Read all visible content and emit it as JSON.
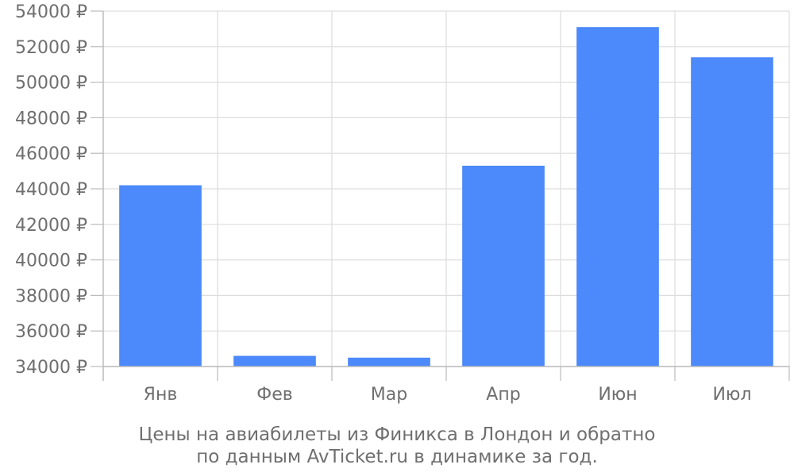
{
  "caption": {
    "line1": "Цены на авиабилеты из Финикса в Лондон и обратно",
    "line2": "по данным AvTicket.ru в динамике за год."
  },
  "colors": {
    "bar": "#4c89fa",
    "grid": "#dddddd",
    "axis": "#bbbbbb",
    "text": "#6f6f6f"
  },
  "chart_data": {
    "type": "bar",
    "categories": [
      "Янв",
      "Фев",
      "Мар",
      "Апр",
      "Июн",
      "Июл"
    ],
    "values": [
      44200,
      34600,
      34500,
      45300,
      53100,
      51400
    ],
    "ylim": [
      34000,
      54000
    ],
    "yticks": [
      34000,
      36000,
      38000,
      40000,
      42000,
      44000,
      46000,
      48000,
      50000,
      52000,
      54000
    ],
    "ytick_suffix": " ₽",
    "grid": true,
    "legend": "none"
  }
}
